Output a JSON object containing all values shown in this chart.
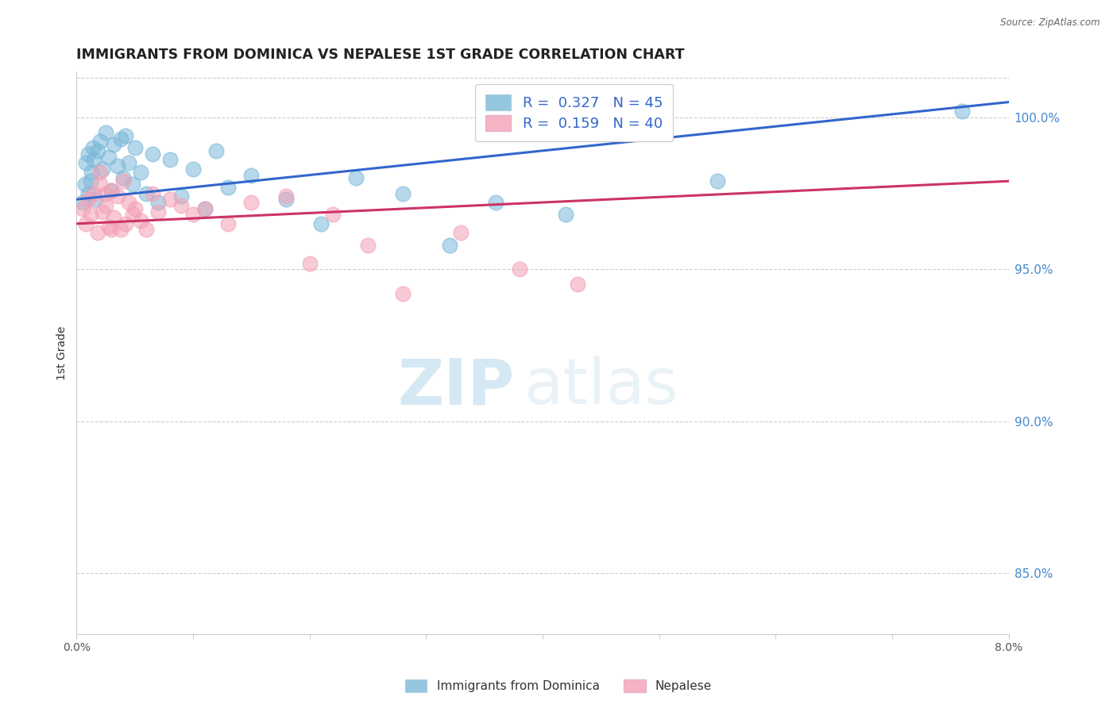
{
  "title": "IMMIGRANTS FROM DOMINICA VS NEPALESE 1ST GRADE CORRELATION CHART",
  "source": "Source: ZipAtlas.com",
  "ylabel": "1st Grade",
  "xmin": 0.0,
  "xmax": 8.0,
  "ymin": 83.0,
  "ymax": 101.5,
  "yticks": [
    85.0,
    90.0,
    95.0,
    100.0
  ],
  "blue_R": 0.327,
  "blue_N": 45,
  "pink_R": 0.159,
  "pink_N": 40,
  "blue_color": "#7ab8d9",
  "pink_color": "#f4a0b5",
  "blue_line_color": "#3366cc",
  "pink_line_color": "#cc3366",
  "legend_label_blue": "Immigrants from Dominica",
  "legend_label_pink": "Nepalese",
  "watermark_zip": "ZIP",
  "watermark_atlas": "atlas",
  "blue_line_x0": 0.0,
  "blue_line_y0": 97.3,
  "blue_line_x1": 8.0,
  "blue_line_y1": 100.5,
  "pink_line_x0": 0.0,
  "pink_line_y0": 96.5,
  "pink_line_x1": 8.0,
  "pink_line_y1": 97.9,
  "blue_scatter_x": [
    0.05,
    0.07,
    0.08,
    0.1,
    0.1,
    0.12,
    0.13,
    0.14,
    0.15,
    0.16,
    0.18,
    0.2,
    0.22,
    0.25,
    0.28,
    0.3,
    0.32,
    0.35,
    0.38,
    0.4,
    0.42,
    0.45,
    0.48,
    0.5,
    0.55,
    0.6,
    0.65,
    0.7,
    0.8,
    0.9,
    1.0,
    1.1,
    1.2,
    1.3,
    1.5,
    1.8,
    2.1,
    2.4,
    2.8,
    3.2,
    3.6,
    4.2,
    5.5,
    7.6,
    4.6
  ],
  "blue_scatter_y": [
    97.2,
    97.8,
    98.5,
    97.5,
    98.8,
    97.9,
    98.2,
    99.0,
    98.6,
    97.3,
    98.9,
    99.2,
    98.3,
    99.5,
    98.7,
    97.6,
    99.1,
    98.4,
    99.3,
    98.0,
    99.4,
    98.5,
    97.8,
    99.0,
    98.2,
    97.5,
    98.8,
    97.2,
    98.6,
    97.4,
    98.3,
    97.0,
    98.9,
    97.7,
    98.1,
    97.3,
    96.5,
    98.0,
    97.5,
    95.8,
    97.2,
    96.8,
    97.9,
    100.2,
    99.8
  ],
  "pink_scatter_x": [
    0.05,
    0.08,
    0.1,
    0.12,
    0.15,
    0.18,
    0.2,
    0.22,
    0.25,
    0.28,
    0.3,
    0.32,
    0.35,
    0.38,
    0.4,
    0.42,
    0.45,
    0.48,
    0.5,
    0.55,
    0.6,
    0.65,
    0.7,
    0.8,
    0.9,
    1.0,
    1.1,
    1.3,
    1.5,
    1.8,
    2.0,
    2.2,
    2.5,
    3.3,
    3.8,
    4.3,
    2.8,
    0.2,
    0.25,
    0.3
  ],
  "pink_scatter_y": [
    97.0,
    96.5,
    97.3,
    96.8,
    97.5,
    96.2,
    97.8,
    96.9,
    97.1,
    96.4,
    97.6,
    96.7,
    97.4,
    96.3,
    97.9,
    96.5,
    97.2,
    96.8,
    97.0,
    96.6,
    96.3,
    97.5,
    96.9,
    97.3,
    97.1,
    96.8,
    97.0,
    96.5,
    97.2,
    97.4,
    95.2,
    96.8,
    95.8,
    96.2,
    95.0,
    94.5,
    94.2,
    98.2,
    97.5,
    96.3
  ]
}
